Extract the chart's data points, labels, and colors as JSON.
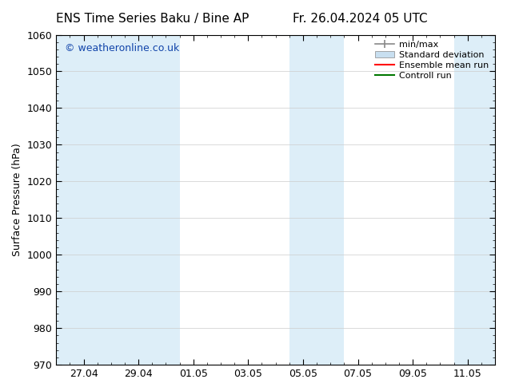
{
  "title_left": "ENS Time Series Baku / Bine AP",
  "title_right": "Fr. 26.04.2024 05 UTC",
  "ylabel": "Surface Pressure (hPa)",
  "ylim": [
    970,
    1060
  ],
  "yticks": [
    970,
    980,
    990,
    1000,
    1010,
    1020,
    1030,
    1040,
    1050,
    1060
  ],
  "xlim": [
    0,
    16
  ],
  "xtick_labels": [
    "27.04",
    "29.04",
    "01.05",
    "03.05",
    "05.05",
    "07.05",
    "09.05",
    "11.05"
  ],
  "xtick_positions": [
    1,
    3,
    5,
    7,
    9,
    11,
    13,
    15
  ],
  "background_color": "#ffffff",
  "plot_bg_color": "#ffffff",
  "shaded_band_color": "#ddeef8",
  "watermark_text": "© weatheronline.co.uk",
  "watermark_color": "#1144aa",
  "shaded_regions": [
    {
      "x_start": 0,
      "x_end": 2.5
    },
    {
      "x_start": 2.5,
      "x_end": 4.5
    },
    {
      "x_start": 8.5,
      "x_end": 10.5
    },
    {
      "x_start": 14.5,
      "x_end": 16
    }
  ],
  "figsize": [
    6.34,
    4.9
  ],
  "dpi": 100,
  "title_fontsize": 11,
  "tick_fontsize": 9,
  "ylabel_fontsize": 9,
  "watermark_fontsize": 9,
  "legend_fontsize": 8
}
